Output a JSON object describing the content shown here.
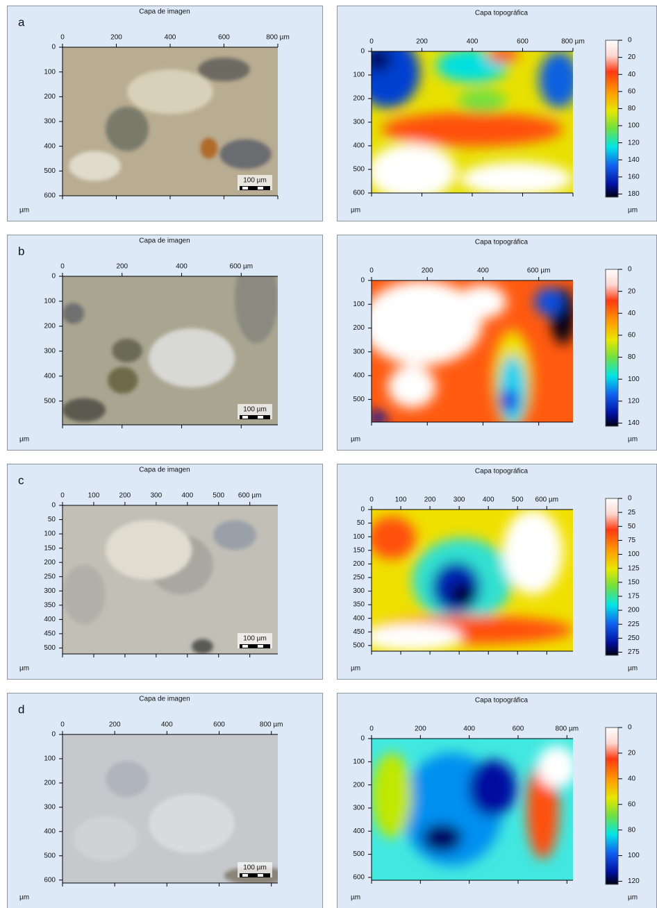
{
  "panels": [
    {
      "label": "a",
      "image": {
        "title": "Capa de imagen",
        "xticks": [
          "0",
          "200",
          "400",
          "600",
          "800 µm"
        ],
        "yticks": [
          "0",
          "100",
          "200",
          "300",
          "400",
          "500",
          "600"
        ],
        "unit": "µm",
        "scale_bar": "100 µm"
      },
      "topo": {
        "title": "Capa topográfica",
        "xticks": [
          "0",
          "200",
          "400",
          "600",
          "800 µm"
        ],
        "yticks": [
          "0",
          "100",
          "200",
          "300",
          "400",
          "500",
          "600"
        ],
        "unit": "µm",
        "colorbar": [
          "0",
          "20",
          "40",
          "60",
          "80",
          "100",
          "120",
          "140",
          "160",
          "180"
        ],
        "colorbar_unit": "µm"
      }
    },
    {
      "label": "b",
      "image": {
        "title": "Capa de imagen",
        "xticks": [
          "0",
          "200",
          "400",
          "600 µm"
        ],
        "yticks": [
          "0",
          "100",
          "200",
          "300",
          "400",
          "500"
        ],
        "unit": "µm",
        "scale_bar": "100 µm"
      },
      "topo": {
        "title": "Capa topográfica",
        "xticks": [
          "0",
          "200",
          "400",
          "600 µm"
        ],
        "yticks": [
          "0",
          "100",
          "200",
          "300",
          "400",
          "500"
        ],
        "unit": "µm",
        "colorbar": [
          "0",
          "20",
          "40",
          "60",
          "80",
          "100",
          "120",
          "140"
        ],
        "colorbar_unit": "µm"
      }
    },
    {
      "label": "c",
      "image": {
        "title": "Capa de imagen",
        "xticks": [
          "0",
          "100",
          "200",
          "300",
          "400",
          "500",
          "600 µm"
        ],
        "yticks": [
          "0",
          "50",
          "100",
          "150",
          "200",
          "250",
          "300",
          "350",
          "400",
          "450",
          "500"
        ],
        "unit": "µm",
        "scale_bar": "100 µm"
      },
      "topo": {
        "title": "Capa topográfica",
        "xticks": [
          "0",
          "100",
          "200",
          "300",
          "400",
          "500",
          "600 µm"
        ],
        "yticks": [
          "0",
          "50",
          "100",
          "150",
          "200",
          "250",
          "300",
          "350",
          "400",
          "450",
          "500"
        ],
        "unit": "µm",
        "colorbar": [
          "0",
          "25",
          "50",
          "75",
          "100",
          "125",
          "150",
          "175",
          "200",
          "225",
          "250",
          "275"
        ],
        "colorbar_unit": "µm"
      }
    },
    {
      "label": "d",
      "image": {
        "title": "Capa de imagen",
        "xticks": [
          "0",
          "200",
          "400",
          "600",
          "800 µm"
        ],
        "yticks": [
          "0",
          "100",
          "200",
          "300",
          "400",
          "500",
          "600"
        ],
        "unit": "µm",
        "scale_bar": "100 µm"
      },
      "topo": {
        "title": "Capa topográfica",
        "xticks": [
          "0",
          "200",
          "400",
          "600",
          "800 µm"
        ],
        "yticks": [
          "0",
          "100",
          "200",
          "300",
          "400",
          "500",
          "600"
        ],
        "unit": "µm",
        "colorbar": [
          "0",
          "20",
          "40",
          "60",
          "80",
          "100",
          "120"
        ],
        "colorbar_unit": "µm"
      }
    }
  ]
}
